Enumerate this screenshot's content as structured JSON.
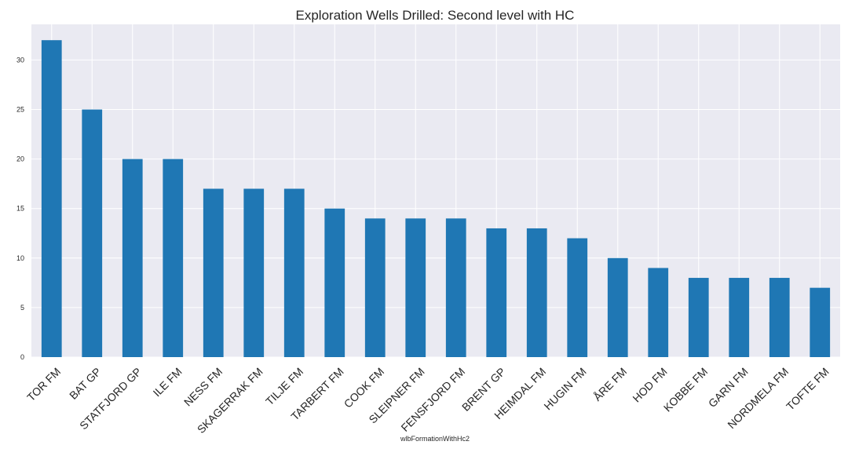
{
  "chart_data": {
    "type": "bar",
    "title": "Exploration Wells Drilled: Second level with HC",
    "xlabel": "wlbFormationWithHc2",
    "ylabel": "",
    "categories": [
      "TOR FM",
      "BAT GP",
      "STATFJORD GP",
      "ILE FM",
      "NESS FM",
      "SKAGERRAK FM",
      "TILJE FM",
      "TARBERT FM",
      "COOK FM",
      "SLEIPNER FM",
      "FENSFJORD FM",
      "BRENT GP",
      "HEIMDAL FM",
      "HUGIN FM",
      "ÅRE FM",
      "HOD FM",
      "KOBBE FM",
      "GARN FM",
      "NORDMELA FM",
      "TOFTE FM"
    ],
    "values": [
      32,
      25,
      20,
      20,
      17,
      17,
      17,
      15,
      14,
      14,
      14,
      13,
      13,
      12,
      10,
      9,
      8,
      8,
      8,
      7
    ],
    "ylim": [
      0,
      33.6
    ],
    "yticks": [
      0,
      5,
      10,
      15,
      20,
      25,
      30
    ],
    "grid": true,
    "legend": "none",
    "colors": {
      "bar": "#1f77b4",
      "plot_background": "#eaeaf2",
      "grid": "#ffffff",
      "text": "#262626"
    }
  }
}
